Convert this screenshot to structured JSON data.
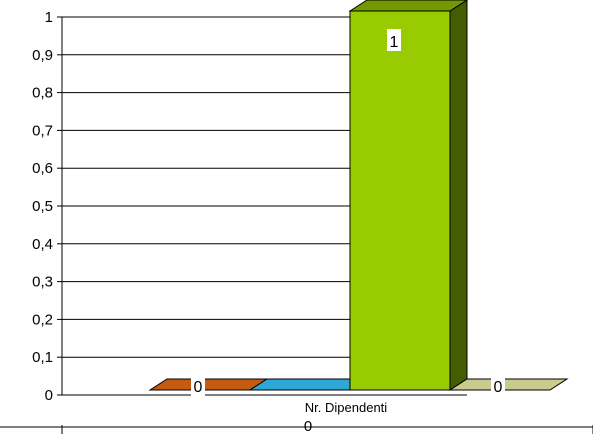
{
  "chart_data": {
    "type": "bar",
    "categories": [
      "Nr. Dipendenti"
    ],
    "series": [
      {
        "values": [
          0
        ],
        "color": "#C55A11",
        "data_label": "0"
      },
      {
        "values": [
          0
        ],
        "color": "#2EA7D6",
        "data_label": ""
      },
      {
        "values": [
          1
        ],
        "color": "#99CC00",
        "data_label": "1"
      },
      {
        "values": [
          0
        ],
        "color": "#C9CC8E",
        "data_label": "0"
      }
    ],
    "axis_category_value_label": "0",
    "y_ticks": [
      "0",
      "0,1",
      "0,2",
      "0,3",
      "0,4",
      "0,5",
      "0,6",
      "0,7",
      "0,8",
      "0,9",
      "1"
    ],
    "ylim": [
      0,
      1
    ],
    "grid": true,
    "legend": "none"
  }
}
